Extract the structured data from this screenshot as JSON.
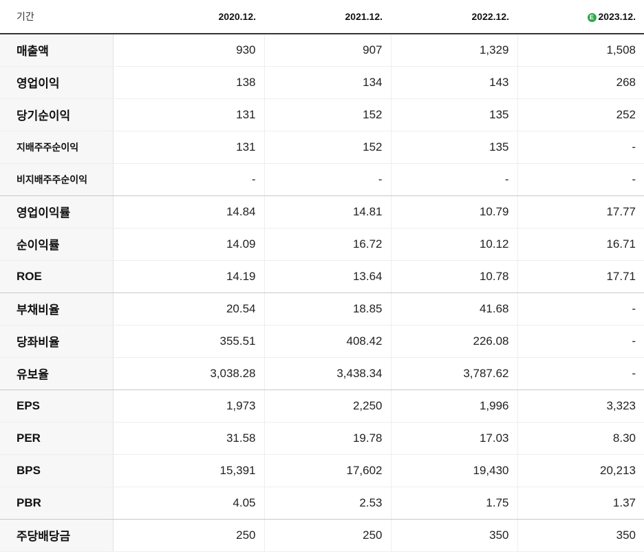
{
  "header": {
    "period_label": "기간",
    "periods": [
      "2020.12.",
      "2021.12.",
      "2022.12.",
      "2023.12."
    ],
    "estimate_badge": "E"
  },
  "rows": [
    {
      "label": "매출액",
      "values": [
        "930",
        "907",
        "1,329",
        "1,508"
      ]
    },
    {
      "label": "영업이익",
      "values": [
        "138",
        "134",
        "143",
        "268"
      ]
    },
    {
      "label": "당기순이익",
      "values": [
        "131",
        "152",
        "135",
        "252"
      ]
    },
    {
      "label": "지배주주순이익",
      "values": [
        "131",
        "152",
        "135",
        "-"
      ]
    },
    {
      "label": "비지배주주순이익",
      "values": [
        "-",
        "-",
        "-",
        "-"
      ]
    },
    {
      "label": "영업이익률",
      "values": [
        "14.84",
        "14.81",
        "10.79",
        "17.77"
      ]
    },
    {
      "label": "순이익률",
      "values": [
        "14.09",
        "16.72",
        "10.12",
        "16.71"
      ]
    },
    {
      "label": "ROE",
      "values": [
        "14.19",
        "13.64",
        "10.78",
        "17.71"
      ]
    },
    {
      "label": "부채비율",
      "values": [
        "20.54",
        "18.85",
        "41.68",
        "-"
      ]
    },
    {
      "label": "당좌비율",
      "values": [
        "355.51",
        "408.42",
        "226.08",
        "-"
      ]
    },
    {
      "label": "유보율",
      "values": [
        "3,038.28",
        "3,438.34",
        "3,787.62",
        "-"
      ]
    },
    {
      "label": "EPS",
      "values": [
        "1,973",
        "2,250",
        "1,996",
        "3,323"
      ]
    },
    {
      "label": "PER",
      "values": [
        "31.58",
        "19.78",
        "17.03",
        "8.30"
      ]
    },
    {
      "label": "BPS",
      "values": [
        "15,391",
        "17,602",
        "19,430",
        "20,213"
      ]
    },
    {
      "label": "PBR",
      "values": [
        "4.05",
        "2.53",
        "1.75",
        "1.37"
      ]
    },
    {
      "label": "주당배당금",
      "values": [
        "250",
        "250",
        "350",
        "350"
      ]
    }
  ]
}
